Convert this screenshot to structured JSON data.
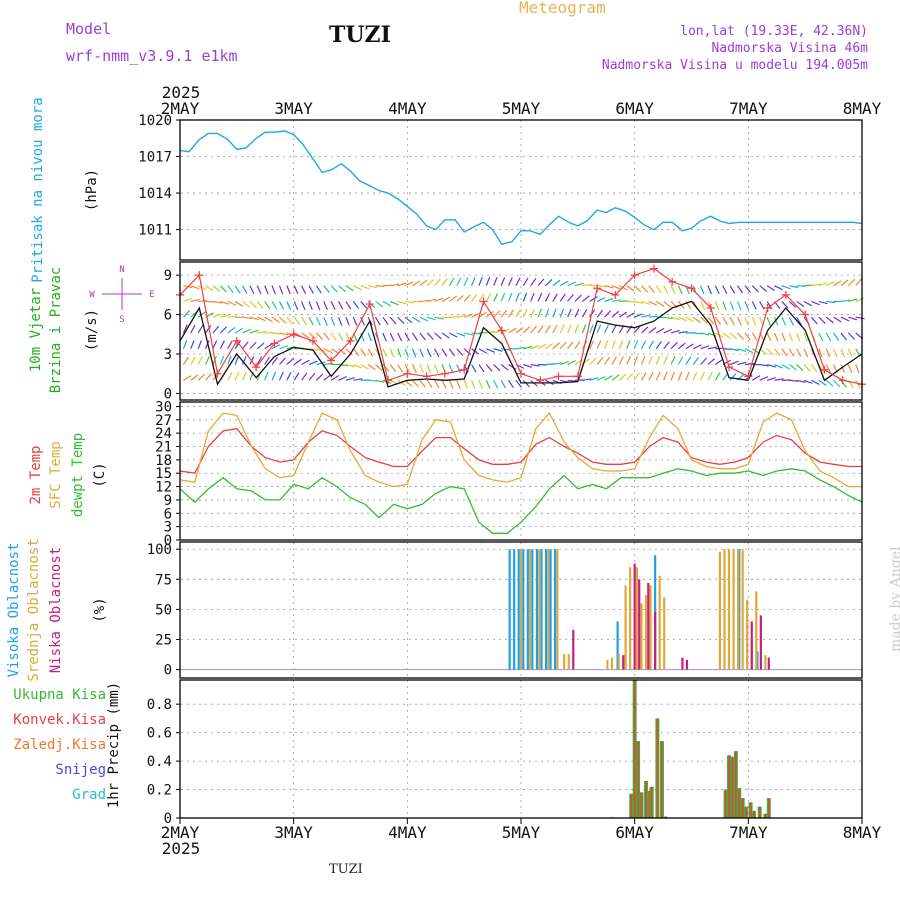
{
  "header": {
    "model_label": "Model",
    "model_name": "wrf-nmm_v3.9.1 e1km",
    "title": "TUZI",
    "meteogram": "Meteogram",
    "lonlat": "lon,lat (19.33E, 42.36N)",
    "altitude": "Nadmorska Visina 46m",
    "model_altitude": "Nadmorska Visina u modelu 194.005m"
  },
  "footer": {
    "station": "TUZI",
    "credit": "made by Angel"
  },
  "colors": {
    "pressure": "#1ea8e8",
    "temp2m": "#e84040",
    "sfc_temp": "#e8a838",
    "dewpt": "#30c030",
    "high_cloud": "#1ea0e8",
    "mid_cloud": "#e0a838",
    "low_cloud": "#c02080",
    "total_precip": "#38b838",
    "conv_precip": "#e84040",
    "frozen": "#f07828",
    "snow": "#4848e8",
    "hail": "#28c0c0",
    "wind_speed": "#111111",
    "gust": "#f04040"
  },
  "chart_data": [
    {
      "type": "line",
      "id": "pressure",
      "ylabel_left": "Pritisak na nivou mora",
      "unit": "(hPa)",
      "x_ticks": [
        "2MAY",
        "3MAY",
        "4MAY",
        "5MAY",
        "6MAY",
        "7MAY",
        "8MAY"
      ],
      "x_start_year": "2025",
      "y_ticks": [
        1011,
        1014,
        1017,
        1020
      ],
      "ylim": [
        1008.5,
        1020
      ],
      "grid": true,
      "x_days": [
        0,
        0.08,
        0.17,
        0.25,
        0.33,
        0.42,
        0.5,
        0.58,
        0.67,
        0.75,
        0.83,
        0.92,
        1.0,
        1.08,
        1.17,
        1.25,
        1.33,
        1.42,
        1.5,
        1.58,
        1.67,
        1.75,
        1.83,
        1.92,
        2.0,
        2.08,
        2.17,
        2.25,
        2.33,
        2.42,
        2.5,
        2.58,
        2.67,
        2.75,
        2.83,
        2.92,
        3.0,
        3.08,
        3.17,
        3.25,
        3.33,
        3.42,
        3.5,
        3.58,
        3.67,
        3.75,
        3.83,
        3.92,
        4.0,
        4.08,
        4.17,
        4.25,
        4.33,
        4.42,
        4.5,
        4.58,
        4.67,
        4.75,
        4.83,
        4.92,
        5.0,
        5.08,
        5.17,
        5.25,
        5.33,
        5.42,
        5.5,
        5.58,
        5.67,
        5.75,
        5.83,
        5.92,
        6.0
      ],
      "values": [
        1017.5,
        1017.4,
        1018.4,
        1018.9,
        1018.9,
        1018.4,
        1017.6,
        1017.7,
        1018.5,
        1019.0,
        1019.0,
        1019.1,
        1018.8,
        1018.0,
        1016.8,
        1015.7,
        1015.9,
        1016.4,
        1015.8,
        1015.0,
        1014.6,
        1014.2,
        1014.0,
        1013.5,
        1012.9,
        1012.3,
        1011.3,
        1011.0,
        1011.8,
        1011.8,
        1010.8,
        1011.2,
        1011.6,
        1011.0,
        1009.8,
        1010.0,
        1010.9,
        1010.9,
        1010.6,
        1011.4,
        1012.1,
        1011.6,
        1011.3,
        1011.7,
        1012.6,
        1012.4,
        1012.8,
        1012.5,
        1012.0,
        1011.4,
        1011.0,
        1011.6,
        1011.6,
        1010.9,
        1011.1,
        1011.7,
        1012.1,
        1011.7,
        1011.5,
        1011.6,
        1011.6,
        1011.6,
        1011.6,
        1011.6,
        1011.6,
        1011.6,
        1011.6,
        1011.6,
        1011.6,
        1011.6,
        1011.6,
        1011.6,
        1011.5
      ]
    },
    {
      "type": "line",
      "id": "wind",
      "ylabel_left": "10m Vjetar",
      "ylabel_left2": "Brzina i Pravac",
      "unit": "(m/s)",
      "compass": [
        "N",
        "W",
        "E",
        "S"
      ],
      "y_ticks": [
        0,
        3,
        6,
        9
      ],
      "ylim": [
        -0.5,
        10
      ],
      "series": [
        {
          "kind": "speed",
          "x_days": [
            0,
            0.17,
            0.33,
            0.5,
            0.67,
            0.83,
            1.0,
            1.17,
            1.33,
            1.5,
            1.67,
            1.83,
            2.0,
            2.17,
            2.33,
            2.5,
            2.67,
            2.83,
            3.0,
            3.17,
            3.33,
            3.5,
            3.67,
            3.83,
            4.0,
            4.17,
            4.33,
            4.5,
            4.67,
            4.83,
            5.0,
            5.17,
            5.33,
            5.5,
            5.67,
            5.83,
            6.0
          ],
          "values": [
            4.0,
            6.5,
            0.7,
            3.0,
            1.2,
            2.8,
            3.5,
            3.3,
            1.3,
            3.0,
            5.5,
            0.5,
            1.0,
            1.1,
            1.0,
            1.1,
            5.0,
            3.8,
            0.8,
            0.8,
            0.8,
            0.9,
            5.5,
            5.2,
            5.0,
            5.5,
            6.5,
            7.0,
            5.2,
            1.2,
            1.0,
            4.8,
            6.5,
            4.8,
            1.0,
            2.0,
            3.0
          ]
        },
        {
          "kind": "gust",
          "x_days": [
            0,
            0.17,
            0.33,
            0.5,
            0.67,
            0.83,
            1.0,
            1.17,
            1.33,
            1.5,
            1.67,
            1.83,
            2.0,
            2.17,
            2.33,
            2.5,
            2.67,
            2.83,
            3.0,
            3.17,
            3.33,
            3.5,
            3.67,
            3.83,
            4.0,
            4.17,
            4.33,
            4.5,
            4.67,
            4.83,
            5.0,
            5.17,
            5.33,
            5.5,
            5.67,
            5.83,
            6.0
          ],
          "values": [
            7.5,
            9.0,
            1.5,
            4.0,
            2.0,
            3.8,
            4.5,
            4.0,
            2.5,
            4.0,
            6.8,
            1.0,
            1.5,
            1.3,
            1.5,
            1.8,
            7.0,
            4.8,
            1.5,
            1.0,
            1.3,
            1.3,
            8.0,
            7.5,
            9.0,
            9.5,
            8.5,
            8.0,
            6.5,
            2.0,
            1.3,
            6.5,
            7.5,
            6.0,
            1.8,
            1.0,
            0.7
          ]
        }
      ]
    },
    {
      "type": "line",
      "id": "temperature",
      "ylabel_left": "2m Temp",
      "ylabel_left2": "SFC Temp",
      "ylabel_left3": "dewpt Temp",
      "unit": "(C)",
      "y_ticks": [
        0,
        3,
        6,
        9,
        12,
        15,
        18,
        21,
        24,
        27,
        30
      ],
      "ylim": [
        0,
        31
      ],
      "x_days": [
        0,
        0.13,
        0.25,
        0.38,
        0.5,
        0.63,
        0.75,
        0.88,
        1.0,
        1.13,
        1.25,
        1.38,
        1.5,
        1.63,
        1.75,
        1.88,
        2.0,
        2.13,
        2.25,
        2.38,
        2.5,
        2.63,
        2.75,
        2.88,
        3.0,
        3.13,
        3.25,
        3.38,
        3.5,
        3.63,
        3.75,
        3.88,
        4.0,
        4.13,
        4.25,
        4.38,
        4.5,
        4.63,
        4.75,
        4.88,
        5.0,
        5.13,
        5.25,
        5.38,
        5.5,
        5.63,
        5.75,
        5.88,
        6.0
      ],
      "series": [
        {
          "name": "2m Temp",
          "values": [
            15.5,
            15.0,
            21.0,
            24.5,
            25.0,
            21.0,
            18.5,
            17.5,
            18.0,
            22.0,
            24.5,
            23.5,
            21.0,
            18.5,
            17.5,
            16.5,
            16.5,
            20.0,
            23.0,
            23.0,
            20.5,
            18.0,
            17.0,
            17.0,
            17.5,
            21.5,
            23.0,
            21.0,
            19.5,
            17.5,
            17.0,
            17.0,
            17.5,
            21.0,
            23.0,
            22.0,
            18.5,
            17.5,
            17.0,
            17.5,
            18.5,
            22.0,
            23.5,
            22.5,
            19.5,
            17.5,
            17.0,
            16.5,
            16.5
          ]
        },
        {
          "name": "SFC Temp",
          "values": [
            13.5,
            13.0,
            24.5,
            28.5,
            28.0,
            21.0,
            16.0,
            14.0,
            14.5,
            22.0,
            28.5,
            27.0,
            20.0,
            14.5,
            13.0,
            12.0,
            12.5,
            22.5,
            27.0,
            26.5,
            18.0,
            14.5,
            13.5,
            13.0,
            14.0,
            25.0,
            28.5,
            22.0,
            18.5,
            16.0,
            15.5,
            15.5,
            16.0,
            23.0,
            28.0,
            25.0,
            18.0,
            16.5,
            16.0,
            16.0,
            17.0,
            26.5,
            28.5,
            27.0,
            20.0,
            15.5,
            14.0,
            12.0,
            12.0
          ]
        },
        {
          "name": "dewpt Temp",
          "values": [
            11.5,
            8.5,
            11.5,
            14.0,
            11.5,
            11.0,
            9.0,
            9.0,
            12.5,
            11.5,
            14.0,
            12.0,
            9.5,
            8.0,
            5.0,
            8.0,
            7.0,
            8.0,
            10.5,
            12.0,
            11.5,
            4.0,
            1.5,
            1.5,
            4.0,
            7.5,
            11.5,
            14.5,
            11.5,
            12.5,
            11.5,
            14.0,
            14.0,
            14.0,
            15.0,
            16.0,
            15.5,
            14.5,
            15.0,
            15.0,
            15.5,
            14.5,
            15.5,
            16.0,
            15.5,
            13.5,
            12.0,
            10.0,
            8.5
          ]
        }
      ]
    },
    {
      "type": "bar",
      "id": "clouds",
      "ylabel_left": "Visoka Oblacnost",
      "ylabel_left2": "Srednja Oblacnost",
      "ylabel_left3": "Niska Oblacnost",
      "unit": "(%)",
      "y_ticks": [
        0,
        25,
        50,
        75,
        100
      ],
      "ylim": [
        -7,
        106
      ],
      "series": [
        {
          "name": "Visoka Oblacnost",
          "x_days": [
            2.9,
            2.94,
            2.98,
            3.02,
            3.06,
            3.1,
            3.14,
            3.18,
            3.22,
            3.26,
            3.3,
            3.85,
            4.18,
            4.92,
            5.08
          ],
          "values": [
            100,
            100,
            100,
            100,
            100,
            100,
            100,
            100,
            100,
            100,
            100,
            40,
            95,
            100,
            15
          ]
        },
        {
          "name": "Srednja Oblacnost",
          "x_days": [
            3.0,
            3.08,
            3.16,
            3.24,
            3.32,
            3.38,
            3.42,
            3.76,
            3.8,
            3.86,
            3.92,
            3.96,
            4.02,
            4.06,
            4.1,
            4.14,
            4.22,
            4.26,
            4.75,
            4.79,
            4.83,
            4.87,
            4.91,
            4.95,
            4.99,
            5.03,
            5.07,
            5.15
          ],
          "values": [
            100,
            100,
            100,
            100,
            100,
            13,
            13,
            8,
            10,
            13,
            70,
            85,
            85,
            55,
            62,
            70,
            78,
            60,
            98,
            100,
            100,
            100,
            100,
            100,
            58,
            25,
            65,
            12
          ]
        },
        {
          "name": "Niska Oblacnost",
          "x_days": [
            3.46,
            3.9,
            4.0,
            4.04,
            4.12,
            4.18,
            4.42,
            4.46,
            5.03,
            5.11,
            5.18
          ],
          "values": [
            33,
            12,
            88,
            75,
            72,
            48,
            10,
            8,
            40,
            45,
            10
          ]
        }
      ]
    },
    {
      "type": "bar",
      "id": "precip",
      "ylabel_left": "1hr Precip",
      "unit": "(mm)",
      "legend": [
        "Ukupna Kisa",
        "Konvek.Kisa",
        "Zaledj.Kisa",
        "Snijeg",
        "Grad"
      ],
      "y_ticks": [
        0,
        0.2,
        0.4,
        0.6,
        0.8
      ],
      "ylim": [
        0,
        0.97
      ],
      "x_days": [
        3.8,
        3.97,
        4.0,
        4.03,
        4.06,
        4.1,
        4.13,
        4.15,
        4.2,
        4.24,
        4.27,
        4.8,
        4.83,
        4.86,
        4.89,
        4.92,
        4.95,
        4.98,
        5.02,
        5.05,
        5.1,
        5.15,
        5.18
      ],
      "values": [
        0.005,
        0.17,
        0.97,
        0.54,
        0.18,
        0.26,
        0.19,
        0.22,
        0.7,
        0.54,
        0.01,
        0.2,
        0.44,
        0.43,
        0.47,
        0.21,
        0.14,
        0.08,
        0.11,
        0.05,
        0.08,
        0.03,
        0.14
      ]
    }
  ]
}
